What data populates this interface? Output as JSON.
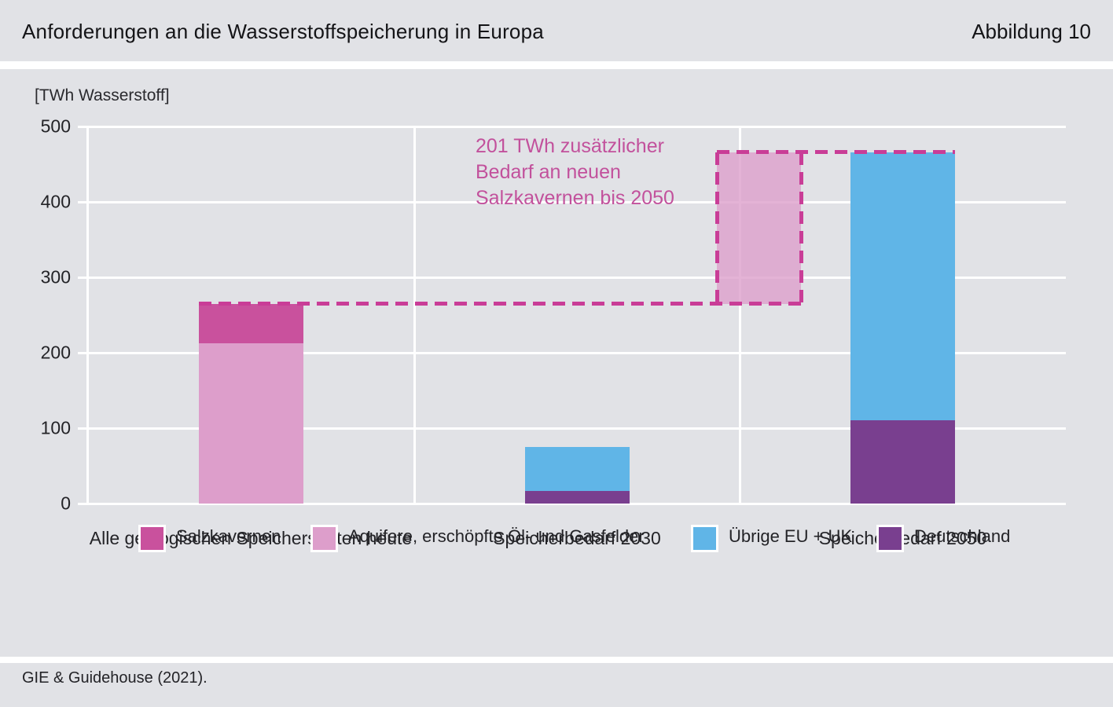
{
  "header": {
    "title": "Anforderungen an die Wasserstoffspeicherung in Europa",
    "figure_label": "Abbildung 10"
  },
  "footer": {
    "source": "GIE & Guidehouse (2021)."
  },
  "chart_data": {
    "type": "bar",
    "stacked": true,
    "title": "Anforderungen an die Wasserstoffspeicherung in Europa",
    "unit_label": "[TWh Wasserstoff]",
    "ylim": [
      0,
      500
    ],
    "yticks": [
      0,
      100,
      200,
      300,
      400,
      500
    ],
    "grid": true,
    "background_color": "#e1e2e6",
    "grid_color": "#ffffff",
    "categories": [
      "Alle geologischen Speicherstätten heute",
      "Speicherbedarf 2030",
      "Speicherbedarf 2050"
    ],
    "series_colors": {
      "Salzkavernen": "#c9519d",
      "Aquifere, erschöpfte Öl- und Gasfelder": "#dd9ecb",
      "Übrige EU + UK": "#60b5e7",
      "Deutschland": "#793f8f"
    },
    "bars": [
      {
        "category": "Alle geologischen Speicherstätten heute",
        "total": 265,
        "segments": [
          {
            "series": "Aquifere, erschöpfte Öl- und Gasfelder",
            "value": 213
          },
          {
            "series": "Salzkavernen",
            "value": 52
          }
        ]
      },
      {
        "category": "Speicherbedarf 2030",
        "total": 75,
        "segments": [
          {
            "series": "Deutschland",
            "value": 17
          },
          {
            "series": "Übrige EU + UK",
            "value": 58
          }
        ]
      },
      {
        "category": "Speicherbedarf 2050",
        "total": 466,
        "segments": [
          {
            "series": "Deutschland",
            "value": 110
          },
          {
            "series": "Übrige EU + UK",
            "value": 356
          }
        ]
      }
    ],
    "annotation": {
      "text_lines": [
        "201 TWh zusätzlicher",
        "Bedarf an neuen",
        "Salzkavernen bis 2050"
      ],
      "delta_value": 201,
      "level_from": 265,
      "level_to": 466,
      "text_color": "#c2519c",
      "dash_color": "#c93d97",
      "fill_color": "rgba(221,158,203,0.78)"
    },
    "legend_entries": [
      {
        "label": "Salzkavernen",
        "color": "#c9519d"
      },
      {
        "label": "Aquifere, erschöpfte Öl- und Gasfelder",
        "color": "#dd9ecb"
      },
      {
        "label": "Übrige EU + UK",
        "color": "#60b5e7"
      },
      {
        "label": "Deutschland",
        "color": "#793f8f"
      }
    ]
  }
}
